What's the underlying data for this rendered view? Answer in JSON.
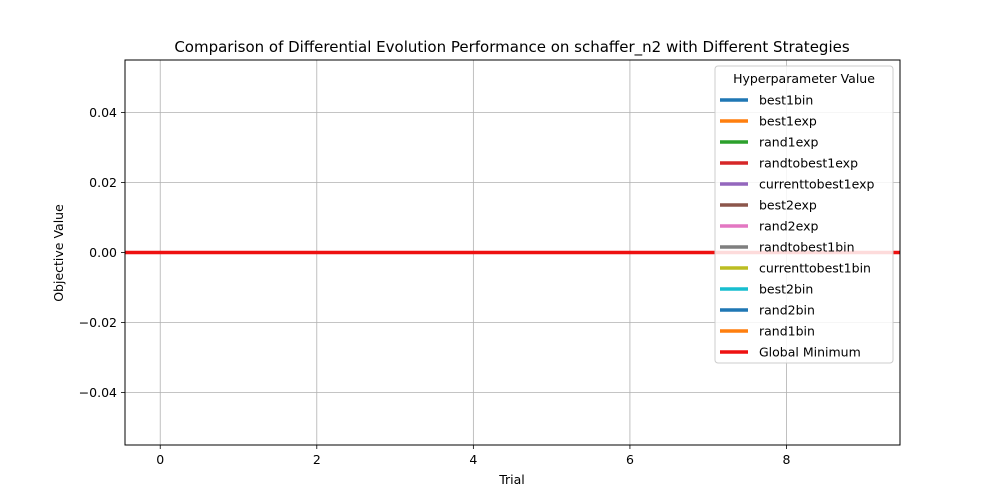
{
  "chart_data": {
    "type": "line",
    "title": "Comparison of Differential Evolution Performance on schaffer_n2 with Different Strategies",
    "xlabel": "Trial",
    "ylabel": "Objective Value",
    "xlim": [
      -0.45,
      9.45
    ],
    "ylim": [
      -0.055,
      0.055
    ],
    "xticks": [
      0,
      2,
      4,
      6,
      8
    ],
    "xtick_labels": [
      "0",
      "2",
      "4",
      "6",
      "8"
    ],
    "yticks": [
      -0.04,
      -0.02,
      0.0,
      0.02,
      0.04
    ],
    "ytick_labels": [
      "−0.04",
      "−0.02",
      "0.00",
      "0.02",
      "0.04"
    ],
    "grid": true,
    "legend": {
      "title": "Hyperparameter Value",
      "position": "upper-right"
    },
    "x": [
      0,
      1,
      2,
      3,
      4,
      5,
      6,
      7,
      8,
      9
    ],
    "series": [
      {
        "name": "best1bin",
        "color": "#1f77b4",
        "values": [
          0,
          0,
          0,
          0,
          0,
          0,
          0,
          0,
          0,
          0
        ]
      },
      {
        "name": "best1exp",
        "color": "#ff7f0e",
        "values": [
          0,
          0,
          0,
          0,
          0,
          0,
          0,
          0,
          0,
          0
        ]
      },
      {
        "name": "rand1exp",
        "color": "#2ca02c",
        "values": [
          0,
          0,
          0,
          0,
          0,
          0,
          0,
          0,
          0,
          0
        ]
      },
      {
        "name": "randtobest1exp",
        "color": "#d62728",
        "values": [
          0,
          0,
          0,
          0,
          0,
          0,
          0,
          0,
          0,
          0
        ]
      },
      {
        "name": "currenttobest1exp",
        "color": "#9467bd",
        "values": [
          0,
          0,
          0,
          0,
          0,
          0,
          0,
          0,
          0,
          0
        ]
      },
      {
        "name": "best2exp",
        "color": "#8c564b",
        "values": [
          0,
          0,
          0,
          0,
          0,
          0,
          0,
          0,
          0,
          0
        ]
      },
      {
        "name": "rand2exp",
        "color": "#e377c2",
        "values": [
          0,
          0,
          0,
          0,
          0,
          0,
          0,
          0,
          0,
          0
        ]
      },
      {
        "name": "randtobest1bin",
        "color": "#7f7f7f",
        "values": [
          0,
          0,
          0,
          0,
          0,
          0,
          0,
          0,
          0,
          0
        ]
      },
      {
        "name": "currenttobest1bin",
        "color": "#bcbd22",
        "values": [
          0,
          0,
          0,
          0,
          0,
          0,
          0,
          0,
          0,
          0
        ]
      },
      {
        "name": "best2bin",
        "color": "#17becf",
        "values": [
          0,
          0,
          0,
          0,
          0,
          0,
          0,
          0,
          0,
          0
        ]
      },
      {
        "name": "rand2bin",
        "color": "#1f77b4",
        "values": [
          0,
          0,
          0,
          0,
          0,
          0,
          0,
          0,
          0,
          0
        ]
      },
      {
        "name": "rand1bin",
        "color": "#ff7f0e",
        "values": [
          0,
          0,
          0,
          0,
          0,
          0,
          0,
          0,
          0,
          0
        ]
      }
    ],
    "reference_line": {
      "name": "Global Minimum",
      "color": "#ee1111",
      "y": 0
    }
  }
}
